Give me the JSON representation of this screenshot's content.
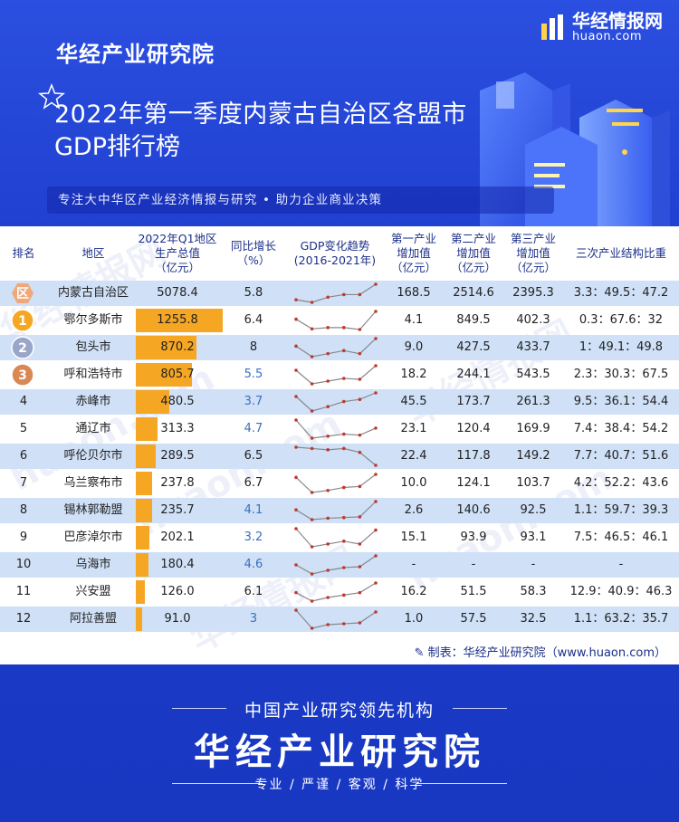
{
  "header": {
    "org": "华经产业研究院",
    "title_line1": "2022年第一季度内蒙古自治区各盟市",
    "title_line2": "GDP排行榜",
    "slogan": "专注大中华区产业经济情报与研究 • 助力企业商业决策",
    "logo_name": "华经情报网",
    "logo_url": "huaon.com"
  },
  "colors": {
    "accent": "#f5a623",
    "header_bg": "#2b4fe0",
    "alt_row": "#cfe0f7",
    "text_dark": "#1b2f8a",
    "growth_highlight": "#3a6fc2",
    "spark_line": "#888888",
    "spark_point": "#c0392b"
  },
  "chart_data": {
    "type": "table",
    "columns": [
      "排名",
      "地区",
      "2022年Q1地区\n生产总值\n（亿元）",
      "同比增长\n（%）",
      "GDP变化趋势\n(2016-2021年)",
      "第一产业\n增加值\n（亿元）",
      "第二产业\n增加值\n（亿元）",
      "第三产业\n增加值\n（亿元）",
      "三次产业结构比重"
    ],
    "rows": [
      {
        "rank": "区",
        "region": "内蒙古自治区",
        "gdp": 5078.4,
        "growth": "5.8",
        "p1": "168.5",
        "p2": "2514.6",
        "p3": "2395.3",
        "structure": "3.3：49.5：47.2"
      },
      {
        "rank": "1",
        "region": "鄂尔多斯市",
        "gdp": 1255.8,
        "growth": "6.4",
        "p1": "4.1",
        "p2": "849.5",
        "p3": "402.3",
        "structure": "0.3：67.6：32"
      },
      {
        "rank": "2",
        "region": "包头市",
        "gdp": 870.2,
        "growth": "8",
        "p1": "9.0",
        "p2": "427.5",
        "p3": "433.7",
        "structure": "1：49.1：49.8"
      },
      {
        "rank": "3",
        "region": "呼和浩特市",
        "gdp": 805.7,
        "growth": "5.5",
        "p1": "18.2",
        "p2": "244.1",
        "p3": "543.5",
        "structure": "2.3：30.3：67.5"
      },
      {
        "rank": "4",
        "region": "赤峰市",
        "gdp": 480.5,
        "growth": "3.7",
        "p1": "45.5",
        "p2": "173.7",
        "p3": "261.3",
        "structure": "9.5：36.1：54.4"
      },
      {
        "rank": "5",
        "region": "通辽市",
        "gdp": 313.3,
        "growth": "4.7",
        "p1": "23.1",
        "p2": "120.4",
        "p3": "169.9",
        "structure": "7.4：38.4：54.2"
      },
      {
        "rank": "6",
        "region": "呼伦贝尔市",
        "gdp": 289.5,
        "growth": "6.5",
        "p1": "22.4",
        "p2": "117.8",
        "p3": "149.2",
        "structure": "7.7：40.7：51.6"
      },
      {
        "rank": "7",
        "region": "乌兰察布市",
        "gdp": 237.8,
        "growth": "6.7",
        "p1": "10.0",
        "p2": "124.1",
        "p3": "103.7",
        "structure": "4.2：52.2：43.6"
      },
      {
        "rank": "8",
        "region": "锡林郭勒盟",
        "gdp": 235.7,
        "growth": "4.1",
        "p1": "2.6",
        "p2": "140.6",
        "p3": "92.5",
        "structure": "1.1：59.7：39.3"
      },
      {
        "rank": "9",
        "region": "巴彦淖尔市",
        "gdp": 202.1,
        "growth": "3.2",
        "p1": "15.1",
        "p2": "93.9",
        "p3": "93.1",
        "structure": "7.5：46.5：46.1"
      },
      {
        "rank": "10",
        "region": "乌海市",
        "gdp": 180.4,
        "growth": "4.6",
        "p1": "-",
        "p2": "-",
        "p3": "-",
        "structure": "-"
      },
      {
        "rank": "11",
        "region": "兴安盟",
        "gdp": 126.0,
        "growth": "6.1",
        "p1": "16.2",
        "p2": "51.5",
        "p3": "58.3",
        "structure": "12.9：40.9：46.3"
      },
      {
        "rank": "12",
        "region": "阿拉善盟",
        "gdp": 91.0,
        "growth": "3",
        "p1": "1.0",
        "p2": "57.5",
        "p3": "32.5",
        "structure": "1.1：63.2：35.7"
      }
    ],
    "trends": [
      [
        1.0,
        0.98,
        1.02,
        1.04,
        1.04,
        1.12
      ],
      [
        1.0,
        0.85,
        0.87,
        0.87,
        0.84,
        1.12
      ],
      [
        1.0,
        0.93,
        0.95,
        0.97,
        0.95,
        1.05
      ],
      [
        1.0,
        0.85,
        0.88,
        0.91,
        0.9,
        1.05
      ],
      [
        1.0,
        0.8,
        0.86,
        0.93,
        0.96,
        1.05
      ],
      [
        1.0,
        0.82,
        0.84,
        0.86,
        0.85,
        0.92
      ],
      [
        1.0,
        0.99,
        0.98,
        0.99,
        0.96,
        0.86
      ],
      [
        1.0,
        0.85,
        0.87,
        0.9,
        0.91,
        1.03
      ],
      [
        1.0,
        0.86,
        0.88,
        0.89,
        0.9,
        1.12
      ],
      [
        1.0,
        0.87,
        0.89,
        0.91,
        0.89,
        0.99
      ],
      [
        1.0,
        0.9,
        0.94,
        0.97,
        0.98,
        1.1
      ],
      [
        1.0,
        0.93,
        0.96,
        0.98,
        1.0,
        1.08
      ],
      [
        1.0,
        0.8,
        0.84,
        0.85,
        0.86,
        0.98
      ]
    ],
    "gdp_bar_max": 1255.8
  },
  "credit": "制表：华经产业研究院（www.huaon.com）",
  "footer": {
    "lead": "中国产业研究领先机构",
    "brand": "华经产业研究院",
    "tags": "专业 / 严谨 / 客观 / 科学"
  },
  "watermark": {
    "name": "华经情报网",
    "url": "huaon.com"
  }
}
